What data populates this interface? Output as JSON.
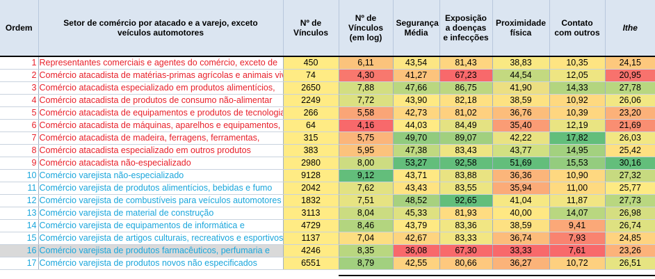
{
  "headers": {
    "ordem": "Ordem",
    "setor": "Setor de comércio por atacado e a varejo, exceto veículos automotores",
    "vinculos": "Nº de Vínculos",
    "vinculos_log": "Nº de Vínculos (em log)",
    "seguranca": "Segurança Média",
    "exposicao": "Exposição a doenças e infecções",
    "proximidade": "Proximidade física",
    "contato": "Contato com outros",
    "ithe": "Ithe"
  },
  "colors": {
    "header_bg": "#dbe5f1",
    "red_text": "#e8202a",
    "blue_text": "#1aa6dc",
    "highlight_row": "#d9d9d9"
  },
  "rows": [
    {
      "n": "1",
      "setor": "Representantes comerciais e agentes do comércio, exceto de",
      "group": "red",
      "v": "450",
      "log": "6,11",
      "seg": "43,54",
      "exp": "81,43",
      "prox": "38,83",
      "cont": "10,35",
      "ithe": "24,15",
      "bg": [
        "#ffeb84",
        "#fbc37c",
        "#fce683",
        "#fed580",
        "#f9e983",
        "#fee482",
        "#fdc87d"
      ]
    },
    {
      "n": "2",
      "setor": "Comércio atacadista de matérias-primas agrícolas e animais vivos",
      "group": "red",
      "v": "74",
      "log": "4,30",
      "seg": "41,27",
      "exp": "67,23",
      "prox": "44,54",
      "cont": "12,05",
      "ithe": "20,95",
      "bg": [
        "#ffeb84",
        "#f8786e",
        "#fcc37c",
        "#f8696b",
        "#c3d980",
        "#eee582",
        "#f8726d"
      ]
    },
    {
      "n": "3",
      "setor": "Comércio atacadista especializado em produtos alimentícios,",
      "group": "red",
      "v": "2650",
      "log": "7,88",
      "seg": "47,66",
      "exp": "86,75",
      "prox": "41,90",
      "cont": "14,33",
      "ithe": "27,78",
      "bg": [
        "#ffeb84",
        "#d3de81",
        "#bad780",
        "#bdd780",
        "#ecdf82",
        "#b3d57f",
        "#b8d780"
      ]
    },
    {
      "n": "4",
      "setor": "Comércio atacadista de produtos de consumo não-alimentar",
      "group": "red",
      "v": "2249",
      "log": "7,72",
      "seg": "43,90",
      "exp": "82,18",
      "prox": "38,59",
      "cont": "10,92",
      "ithe": "26,06",
      "bg": [
        "#ffeb84",
        "#dce081",
        "#fee983",
        "#fee082",
        "#fde282",
        "#fed980",
        "#f2e783"
      ]
    },
    {
      "n": "5",
      "setor": "Comércio atacadista de equipamentos e produtos de tecnologias",
      "group": "red",
      "v": "266",
      "log": "5,58",
      "seg": "42,73",
      "exp": "81,02",
      "prox": "36,76",
      "cont": "10,39",
      "ithe": "23,20",
      "bg": [
        "#ffeb84",
        "#faa577",
        "#fed680",
        "#fed07f",
        "#fcbd7b",
        "#fed680",
        "#fcb179"
      ]
    },
    {
      "n": "6",
      "setor": "Comércio atacadista de máquinas, aparelhos e equipamentos,",
      "group": "red",
      "v": "64",
      "log": "4,16",
      "seg": "44,03",
      "exp": "84,49",
      "prox": "35,40",
      "cont": "12,19",
      "ithe": "21,69",
      "bg": [
        "#ffeb84",
        "#f8696b",
        "#ffea84",
        "#e4e282",
        "#fa9c75",
        "#e9e482",
        "#f98e72"
      ]
    },
    {
      "n": "7",
      "setor": "Comércio atacadista de madeira, ferragens, ferramentas,",
      "group": "red",
      "v": "315",
      "log": "5,75",
      "seg": "49,70",
      "exp": "89,07",
      "prox": "42,22",
      "cont": "17,82",
      "ithe": "26,03",
      "bg": [
        "#ffeb84",
        "#fbb57a",
        "#91cb7e",
        "#a1d07f",
        "#e9e382",
        "#63be7b",
        "#f2e783"
      ]
    },
    {
      "n": "8",
      "setor": "Comércio atacadista especializado em outros produtos",
      "group": "red",
      "v": "383",
      "log": "5,95",
      "seg": "47,38",
      "exp": "83,43",
      "prox": "43,77",
      "cont": "14,95",
      "ithe": "25,42",
      "bg": [
        "#ffeb84",
        "#fbc27c",
        "#c0d980",
        "#eee582",
        "#d1e082",
        "#a3d17f",
        "#fee081"
      ]
    },
    {
      "n": "9",
      "setor": "Comércio atacadista não-especializado",
      "group": "red",
      "v": "2980",
      "log": "8,00",
      "seg": "53,27",
      "exp": "92,58",
      "prox": "51,69",
      "cont": "15,53",
      "ithe": "30,16",
      "bg": [
        "#ffeb84",
        "#cddc81",
        "#63be7b",
        "#63be7b",
        "#63be7b",
        "#94cc7e",
        "#63be7b"
      ]
    },
    {
      "n": "10",
      "setor": "Comércio varejista não-especializado",
      "group": "blue",
      "v": "9128",
      "log": "9,12",
      "seg": "43,71",
      "exp": "83,88",
      "prox": "36,36",
      "cont": "10,90",
      "ithe": "27,32",
      "bg": [
        "#ffeb84",
        "#63be7b",
        "#fee883",
        "#e9e382",
        "#fbb57a",
        "#fed880",
        "#c7da80"
      ]
    },
    {
      "n": "11",
      "setor": "Comércio varejista de produtos alimentícios, bebidas e fumo",
      "group": "blue",
      "v": "2042",
      "log": "7,62",
      "seg": "43,43",
      "exp": "83,55",
      "prox": "35,94",
      "cont": "11,00",
      "ithe": "25,77",
      "bg": [
        "#ffeb84",
        "#e2e282",
        "#fee382",
        "#ece582",
        "#fbab78",
        "#feda80",
        "#fdea83"
      ]
    },
    {
      "n": "12",
      "setor": "Comércio varejista de combustíveis para veículos automotores",
      "group": "blue",
      "v": "1832",
      "log": "7,51",
      "seg": "48,52",
      "exp": "92,65",
      "prox": "41,04",
      "cont": "11,87",
      "ithe": "27,73",
      "bg": [
        "#ffeb84",
        "#e6e382",
        "#a7d17f",
        "#63be7b",
        "#f6e883",
        "#f1e583",
        "#b9d780"
      ]
    },
    {
      "n": "13",
      "setor": "Comércio varejista de material de construção",
      "group": "blue",
      "v": "3113",
      "log": "8,04",
      "seg": "45,33",
      "exp": "81,93",
      "prox": "40,00",
      "cont": "14,07",
      "ithe": "26,98",
      "bg": [
        "#ffeb84",
        "#cbdc81",
        "#dee181",
        "#fedc81",
        "#fee883",
        "#b9d780",
        "#d5de81"
      ]
    },
    {
      "n": "14",
      "setor": "Comércio varejista de equipamentos de informática e",
      "group": "blue",
      "v": "4729",
      "log": "8,46",
      "seg": "43,79",
      "exp": "83,36",
      "prox": "38,59",
      "cont": "9,41",
      "ithe": "26,74",
      "bg": [
        "#ffeb84",
        "#b3d57f",
        "#fee983",
        "#f1e683",
        "#fde182",
        "#fba878",
        "#dee181"
      ]
    },
    {
      "n": "15",
      "setor": "Comércio varejista de artigos culturais, recreativos e esportivos",
      "group": "blue",
      "v": "1137",
      "log": "7,04",
      "seg": "42,67",
      "exp": "83,33",
      "prox": "36,74",
      "cont": "7,93",
      "ithe": "24,85",
      "bg": [
        "#ffeb84",
        "#fcde81",
        "#fdd480",
        "#f2e683",
        "#fcbc7b",
        "#f98370",
        "#fed380"
      ]
    },
    {
      "n": "16",
      "setor": "Comércio varejista de produtos farmacêuticos, perfumaria e",
      "group": "blue",
      "v": "4246",
      "log": "8,35",
      "seg": "36,08",
      "exp": "67,30",
      "prox": "33,33",
      "cont": "7,61",
      "ithe": "23,26",
      "bg": [
        "#ffeb84",
        "#b9d780",
        "#f8696b",
        "#f86a6b",
        "#f8696b",
        "#f8696b",
        "#fcb27a"
      ],
      "highlight": true
    },
    {
      "n": "17",
      "setor": "Comércio varejista de produtos novos não especificados",
      "group": "blue",
      "v": "6551",
      "log": "8,79",
      "seg": "42,55",
      "exp": "80,66",
      "prox": "36,27",
      "cont": "10,72",
      "ithe": "26,51",
      "bg": [
        "#ffeb84",
        "#a2d07f",
        "#fdd27f",
        "#fec87e",
        "#fbb379",
        "#fdd07f",
        "#e6e482"
      ]
    }
  ]
}
